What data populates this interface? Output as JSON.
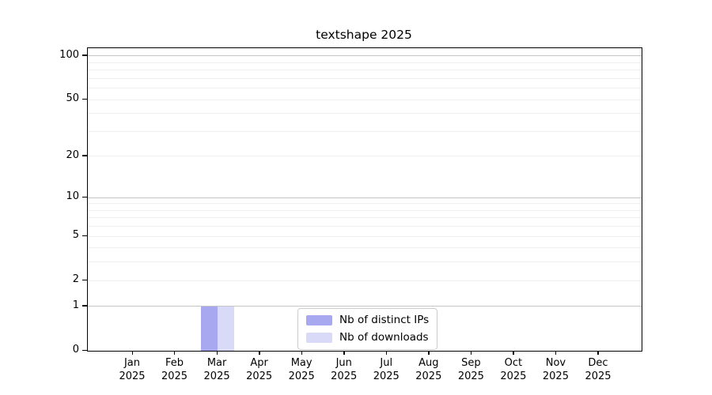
{
  "title": "textshape 2025",
  "legend": {
    "items": [
      {
        "label": "Nb of distinct IPs",
        "color": "#a8a8f0"
      },
      {
        "label": "Nb of downloads",
        "color": "#d9d9f8"
      }
    ]
  },
  "chart_data": {
    "type": "bar",
    "title": "textshape 2025",
    "categories": [
      {
        "month": "Jan",
        "year": "2025"
      },
      {
        "month": "Feb",
        "year": "2025"
      },
      {
        "month": "Mar",
        "year": "2025"
      },
      {
        "month": "Apr",
        "year": "2025"
      },
      {
        "month": "May",
        "year": "2025"
      },
      {
        "month": "Jun",
        "year": "2025"
      },
      {
        "month": "Jul",
        "year": "2025"
      },
      {
        "month": "Aug",
        "year": "2025"
      },
      {
        "month": "Sep",
        "year": "2025"
      },
      {
        "month": "Oct",
        "year": "2025"
      },
      {
        "month": "Nov",
        "year": "2025"
      },
      {
        "month": "Dec",
        "year": "2025"
      }
    ],
    "series": [
      {
        "name": "Nb of distinct IPs",
        "color": "#a8a8f0",
        "values": [
          0,
          0,
          1,
          0,
          0,
          0,
          0,
          0,
          0,
          0,
          0,
          0
        ]
      },
      {
        "name": "Nb of downloads",
        "color": "#d9d9f8",
        "values": [
          0,
          0,
          1,
          0,
          0,
          0,
          0,
          0,
          0,
          0,
          0,
          0
        ]
      }
    ],
    "xlabel": "",
    "ylabel": "",
    "y_scale": "log10(1+y)",
    "ylim": [
      0,
      113
    ],
    "y_tick_values": [
      0,
      1,
      2,
      5,
      10,
      20,
      50,
      100
    ],
    "y_tick_labels": [
      "0",
      "1",
      "2",
      "5",
      "10",
      "20",
      "50",
      "100"
    ],
    "y_major_gridlines": [
      1,
      10,
      100
    ],
    "y_minor_gridlines": [
      2,
      3,
      4,
      5,
      6,
      7,
      8,
      9,
      20,
      30,
      40,
      50,
      60,
      70,
      80,
      90
    ],
    "grid": true,
    "legend_position": "lower center"
  },
  "colors": {
    "background": "#ffffff",
    "spine": "#000000",
    "grid_major": "#c6c6c6",
    "grid_minor": "#efefef",
    "text": "#000000",
    "legend_border": "#cccccc"
  }
}
